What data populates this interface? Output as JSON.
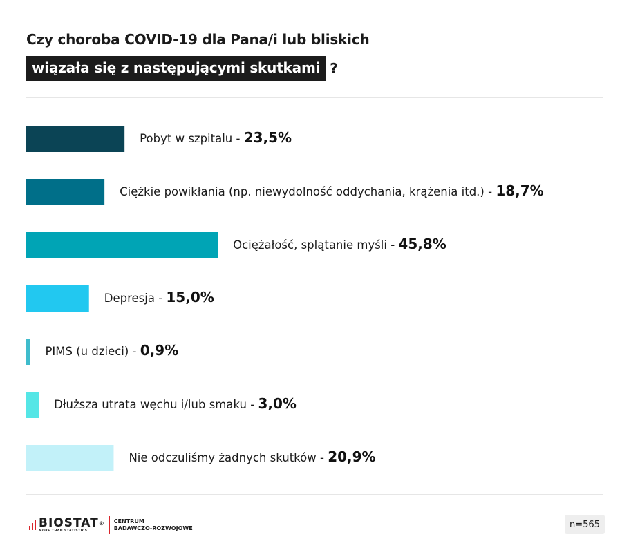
{
  "chart_data": {
    "type": "bar",
    "orientation": "horizontal",
    "title_line1": "Czy choroba COVID-19 dla Pana/i lub bliskich",
    "title_line2": "wiązała się z następującymi skutkami",
    "title_suffix": "?",
    "categories": [
      "Pobyt w szpitalu",
      "Ciężkie powikłania (np. niewydolność oddychania, krążenia itd.)",
      "Ociężałość, splątanie myśli",
      "Depresja",
      "PIMS (u dzieci)",
      "Dłuższa utrata węchu i/lub smaku",
      "Nie odczuliśmy żadnych skutków"
    ],
    "values": [
      23.5,
      18.7,
      45.8,
      15.0,
      0.9,
      3.0,
      20.9
    ],
    "value_labels": [
      "23,5%",
      "18,7%",
      "45,8%",
      "15,0%",
      "0,9%",
      "3,0%",
      "20,9%"
    ],
    "colors": [
      "#0b4455",
      "#006f89",
      "#00a4b5",
      "#22c8f0",
      "#3fbccc",
      "#55e6e6",
      "#c2f1f9"
    ],
    "separator": " - "
  },
  "footer": {
    "brand": "BIOSTAT",
    "brand_reg": "®",
    "brand_tagline": "MORE THAN STATISTICS",
    "centre_line1": "CENTRUM",
    "centre_line2": "BADAWCZO-ROZWOJOWE",
    "sample_size": "n=565"
  }
}
